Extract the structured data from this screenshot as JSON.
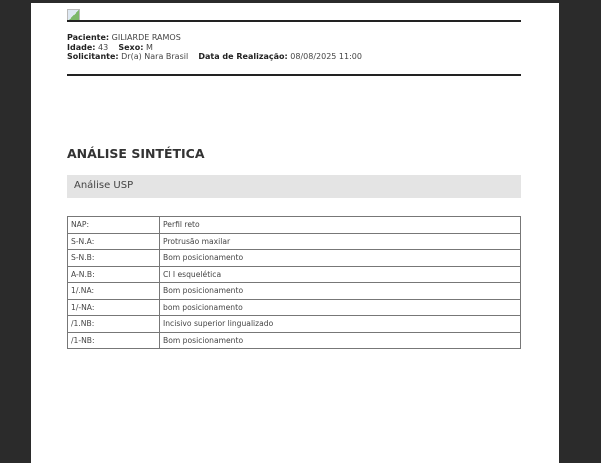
{
  "header": {
    "patient_label": "Paciente:",
    "patient": "GILIARDE RAMOS",
    "age_label": "Idade:",
    "age": "43",
    "sex_label": "Sexo:",
    "sex": "M",
    "requester_label": "Solicitante:",
    "requester": "Dr(a) Nara Brasil",
    "date_label": "Data de Realização:",
    "date": "08/08/2025 11:00"
  },
  "section_title": "ANÁLISE SINTÉTICA",
  "subsection_title": "Análise USP",
  "rows": [
    {
      "key": "NAP:",
      "value": "Perfil reto"
    },
    {
      "key": "S-N.A:",
      "value": "Protrusão maxilar"
    },
    {
      "key": "S-N.B:",
      "value": "Bom posicionamento"
    },
    {
      "key": "A-N.B:",
      "value": "Cl I esquelética"
    },
    {
      "key": "1/.NA:",
      "value": "Bom posicionamento"
    },
    {
      "key": "1/-NA:",
      "value": "bom posicionamento"
    },
    {
      "key": "/1.NB:",
      "value": "Incisivo superior lingualizado"
    },
    {
      "key": "/1-NB:",
      "value": "Bom posicionamento"
    }
  ]
}
